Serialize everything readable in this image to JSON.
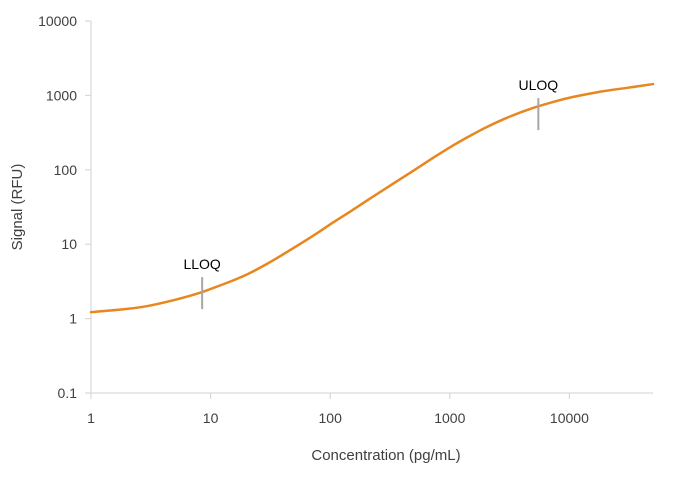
{
  "chart_data": {
    "type": "line",
    "title": "",
    "xlabel": "Concentration (pg/mL)",
    "ylabel": "Signal (RFU)",
    "x_scale": "log",
    "y_scale": "log",
    "xlim": [
      1,
      50000
    ],
    "ylim": [
      0.1,
      10000
    ],
    "x_ticks": [
      1,
      10,
      100,
      1000,
      10000
    ],
    "x_tick_labels": [
      "1",
      "10",
      "100",
      "1000",
      "10000"
    ],
    "y_ticks": [
      0.1,
      1,
      10,
      100,
      1000,
      10000
    ],
    "y_tick_labels": [
      "0.1",
      "1",
      "10",
      "100",
      "1000",
      "10000"
    ],
    "grid": false,
    "legend": "none",
    "series": [
      {
        "color": "#E8861F",
        "x": [
          1,
          2,
          3,
          5,
          8,
          10,
          15,
          20,
          30,
          50,
          80,
          100,
          150,
          200,
          300,
          500,
          800,
          1000,
          1500,
          2000,
          3000,
          5000,
          8000,
          10000,
          15000,
          20000,
          30000,
          50000
        ],
        "y": [
          1.22,
          1.35,
          1.48,
          1.78,
          2.2,
          2.5,
          3.2,
          3.9,
          5.5,
          9,
          14.5,
          18.5,
          28,
          38,
          58,
          98,
          160,
          200,
          290,
          370,
          500,
          680,
          850,
          930,
          1060,
          1150,
          1260,
          1420
        ]
      }
    ],
    "annotations": [
      {
        "label": "LLOQ",
        "x": 8.5,
        "y": 2.2,
        "color": "#A6A6A6"
      },
      {
        "label": "ULOQ",
        "x": 5500,
        "y": 560,
        "color": "#A6A6A6"
      }
    ],
    "axis_color": "#D9D9D9"
  }
}
